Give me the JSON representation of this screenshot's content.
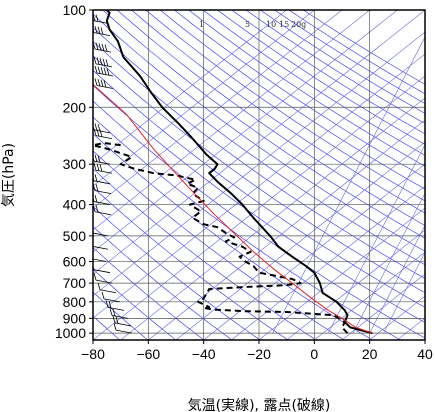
{
  "chart_data": {
    "type": "line",
    "title": "",
    "xlabel": "気温(実線), 露点(破線)",
    "ylabel": "気圧(hPa)",
    "xlim": [
      -80,
      40
    ],
    "ylim": [
      1050,
      100
    ],
    "y_scale": "log",
    "grid": true,
    "x_ticks": [
      {
        "value": -80,
        "label": "−80"
      },
      {
        "value": -60,
        "label": "−60"
      },
      {
        "value": -40,
        "label": "−40"
      },
      {
        "value": -20,
        "label": "−20"
      },
      {
        "value": 0,
        "label": "0"
      },
      {
        "value": 20,
        "label": "20"
      },
      {
        "value": 40,
        "label": "40"
      }
    ],
    "y_ticks": [
      {
        "value": 100,
        "label": "100"
      },
      {
        "value": 200,
        "label": "200"
      },
      {
        "value": 300,
        "label": "300"
      },
      {
        "value": 400,
        "label": "400"
      },
      {
        "value": 500,
        "label": "500"
      },
      {
        "value": 600,
        "label": "600"
      },
      {
        "value": 700,
        "label": "700"
      },
      {
        "value": 800,
        "label": "800"
      },
      {
        "value": 900,
        "label": "900"
      },
      {
        "value": 1000,
        "label": "1000"
      }
    ],
    "mixing_ratio_labels": [
      "1",
      "5",
      "10",
      "15",
      "20g"
    ],
    "series": [
      {
        "style": "solid",
        "color": "#000000",
        "points": [
          [
            21,
            1000
          ],
          [
            13,
            960
          ],
          [
            11,
            925
          ],
          [
            12,
            880
          ],
          [
            11,
            850
          ],
          [
            8,
            800
          ],
          [
            3,
            750
          ],
          [
            2,
            700
          ],
          [
            0,
            650
          ],
          [
            -3,
            620
          ],
          [
            -8,
            580
          ],
          [
            -13,
            540
          ],
          [
            -16,
            500
          ],
          [
            -22,
            440
          ],
          [
            -26,
            400
          ],
          [
            -30,
            370
          ],
          [
            -35,
            340
          ],
          [
            -38,
            320
          ],
          [
            -36,
            310
          ],
          [
            -35,
            300
          ],
          [
            -39,
            280
          ],
          [
            -44,
            250
          ],
          [
            -49,
            225
          ],
          [
            -55,
            200
          ],
          [
            -59,
            180
          ],
          [
            -63,
            160
          ],
          [
            -69,
            140
          ],
          [
            -71,
            125
          ],
          [
            -74,
            115
          ],
          [
            -75,
            108
          ],
          [
            -74,
            102
          ],
          [
            -75,
            100
          ]
        ]
      },
      {
        "style": "dashed",
        "color": "#000000",
        "points": [
          [
            12,
            1000
          ],
          [
            10,
            960
          ],
          [
            11,
            925
          ],
          [
            7,
            880
          ],
          [
            -10,
            860
          ],
          [
            -25,
            855
          ],
          [
            -37,
            845
          ],
          [
            -40,
            835
          ],
          [
            -38,
            830
          ],
          [
            -42,
            800
          ],
          [
            -40,
            780
          ],
          [
            -38,
            730
          ],
          [
            -25,
            720
          ],
          [
            -10,
            710
          ],
          [
            -5,
            700
          ],
          [
            -8,
            680
          ],
          [
            -20,
            650
          ],
          [
            -22,
            620
          ],
          [
            -25,
            600
          ],
          [
            -27,
            580
          ],
          [
            -23,
            560
          ],
          [
            -26,
            540
          ],
          [
            -32,
            520
          ],
          [
            -29,
            505
          ],
          [
            -32,
            490
          ],
          [
            -35,
            470
          ],
          [
            -40,
            460
          ],
          [
            -44,
            440
          ],
          [
            -41,
            420
          ],
          [
            -45,
            400
          ],
          [
            -40,
            390
          ],
          [
            -44,
            370
          ],
          [
            -42,
            355
          ],
          [
            -46,
            345
          ],
          [
            -43,
            335
          ],
          [
            -50,
            325
          ],
          [
            -58,
            320
          ],
          [
            -65,
            310
          ],
          [
            -70,
            300
          ],
          [
            -66,
            285
          ],
          [
            -74,
            270
          ],
          [
            -80,
            262
          ],
          [
            -76,
            258
          ],
          [
            -70,
            262
          ]
        ]
      },
      {
        "style": "solid",
        "color": "#e02020",
        "points": [
          [
            21,
            1000
          ],
          [
            15,
            960
          ],
          [
            10,
            900
          ],
          [
            5,
            850
          ],
          [
            -1,
            780
          ],
          [
            -8,
            700
          ],
          [
            -15,
            630
          ],
          [
            -22,
            560
          ],
          [
            -28,
            500
          ],
          [
            -36,
            430
          ],
          [
            -46,
            350
          ],
          [
            -58,
            270
          ],
          [
            -68,
            210
          ],
          [
            -80,
            170
          ]
        ]
      }
    ],
    "wind_barbs": [
      {
        "p": 110,
        "speed": 25
      },
      {
        "p": 120,
        "speed": 35
      },
      {
        "p": 135,
        "speed": 45
      },
      {
        "p": 150,
        "speed": 50
      },
      {
        "p": 160,
        "speed": 45
      },
      {
        "p": 175,
        "speed": 40
      },
      {
        "p": 240,
        "speed": 30
      },
      {
        "p": 250,
        "speed": 30
      },
      {
        "p": 300,
        "speed": 25
      },
      {
        "p": 320,
        "speed": 25
      },
      {
        "p": 345,
        "speed": 20
      },
      {
        "p": 370,
        "speed": 20
      },
      {
        "p": 400,
        "speed": 15
      },
      {
        "p": 430,
        "speed": 15
      },
      {
        "p": 500,
        "speed": 10
      },
      {
        "p": 550,
        "speed": 10
      },
      {
        "p": 600,
        "speed": 10
      },
      {
        "p": 650,
        "speed": 10
      },
      {
        "p": 700,
        "speed": 10
      },
      {
        "p": 750,
        "speed": 10
      },
      {
        "p": 800,
        "speed": 10
      },
      {
        "p": 850,
        "speed": 15
      },
      {
        "p": 900,
        "speed": 15
      },
      {
        "p": 950,
        "speed": 15
      },
      {
        "p": 1000,
        "speed": 10
      }
    ],
    "colors": {
      "isotherm": "#6a6ae0",
      "dry_adiabat": "#2a2aff",
      "grid": "#555555",
      "frame": "#000000"
    }
  }
}
